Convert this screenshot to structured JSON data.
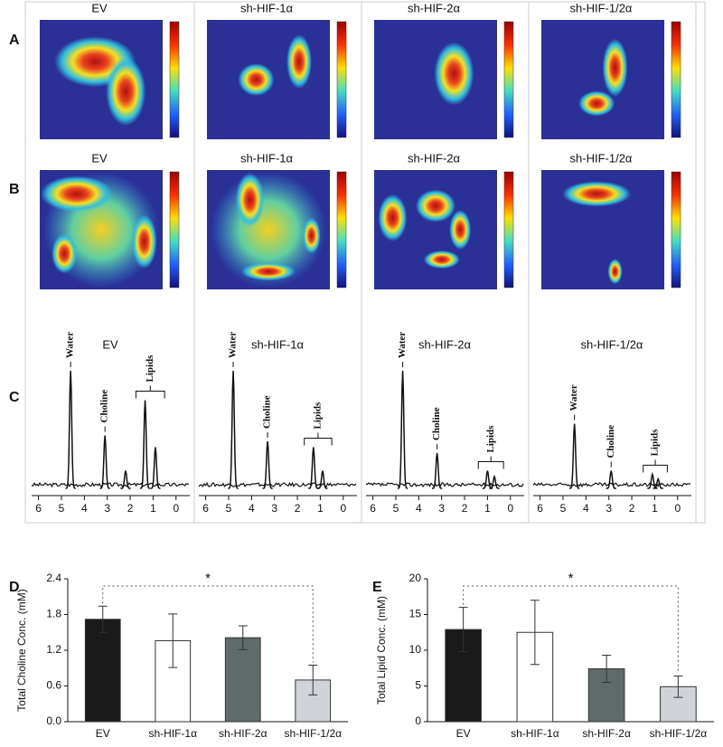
{
  "figure": {
    "panel_labels": [
      "A",
      "B",
      "C",
      "D",
      "E"
    ],
    "columns": [
      "EV",
      "sh-HIF-1α",
      "sh-HIF-2α",
      "sh-HIF-1/2α"
    ],
    "spectra": {
      "xlim": [
        6.3,
        -0.6
      ],
      "xticks": [
        6,
        5,
        4,
        3,
        2,
        1,
        0
      ],
      "annotations": [
        "Water",
        "Choline",
        "Lipids"
      ],
      "traces": [
        {
          "peaks": [
            {
              "x": 4.6,
              "height": 1
            },
            {
              "x": 3.1,
              "height": 0.45
            },
            {
              "x": 2.2,
              "height": 0.15
            },
            {
              "x": 1.35,
              "height": 0.75
            },
            {
              "x": 0.9,
              "height": 0.35
            }
          ]
        },
        {
          "peaks": [
            {
              "x": 4.8,
              "height": 1
            },
            {
              "x": 3.3,
              "height": 0.4
            },
            {
              "x": 1.3,
              "height": 0.35
            },
            {
              "x": 0.9,
              "height": 0.15
            }
          ]
        },
        {
          "peaks": [
            {
              "x": 4.7,
              "height": 1
            },
            {
              "x": 3.2,
              "height": 0.3
            },
            {
              "x": 1.0,
              "height": 0.15
            },
            {
              "x": 0.7,
              "height": 0.1
            }
          ]
        },
        {
          "peaks": [
            {
              "x": 4.5,
              "height": 0.55
            },
            {
              "x": 2.9,
              "height": 0.15
            },
            {
              "x": 1.1,
              "height": 0.12
            },
            {
              "x": 0.85,
              "height": 0.08
            }
          ]
        }
      ]
    }
  },
  "chart_data": [
    {
      "type": "bar",
      "ylabel": "Total Choline Conc. (mM)",
      "categories": [
        "EV",
        "sh-HIF-1α",
        "sh-HIF-2α",
        "sh-HIF-1/2α"
      ],
      "values": [
        1.72,
        1.36,
        1.41,
        0.7
      ],
      "errors": [
        0.22,
        0.45,
        0.2,
        0.25
      ],
      "colors": [
        "#1a1a1a",
        "#ffffff",
        "#5f6b6b",
        "#d0d4d8"
      ],
      "ylim": [
        0,
        2.4
      ],
      "yticks": [
        {
          "value": 0,
          "label": "0.0"
        },
        0.6,
        1.2,
        1.8,
        2.4
      ],
      "annotation": "*"
    },
    {
      "type": "bar",
      "ylabel": "Total Lipid Conc. (mM)",
      "categories": [
        "EV",
        "sh-HIF-1α",
        "sh-HIF-2α",
        "sh-HIF-1/2α"
      ],
      "values": [
        12.9,
        12.5,
        7.4,
        4.9
      ],
      "errors": [
        3.1,
        4.5,
        1.9,
        1.5
      ],
      "colors": [
        "#1a1a1a",
        "#ffffff",
        "#5f6b6b",
        "#d0d4d8"
      ],
      "ylim": [
        0,
        20
      ],
      "yticks": [
        0,
        5,
        10,
        15,
        20
      ],
      "annotation": "*"
    }
  ]
}
